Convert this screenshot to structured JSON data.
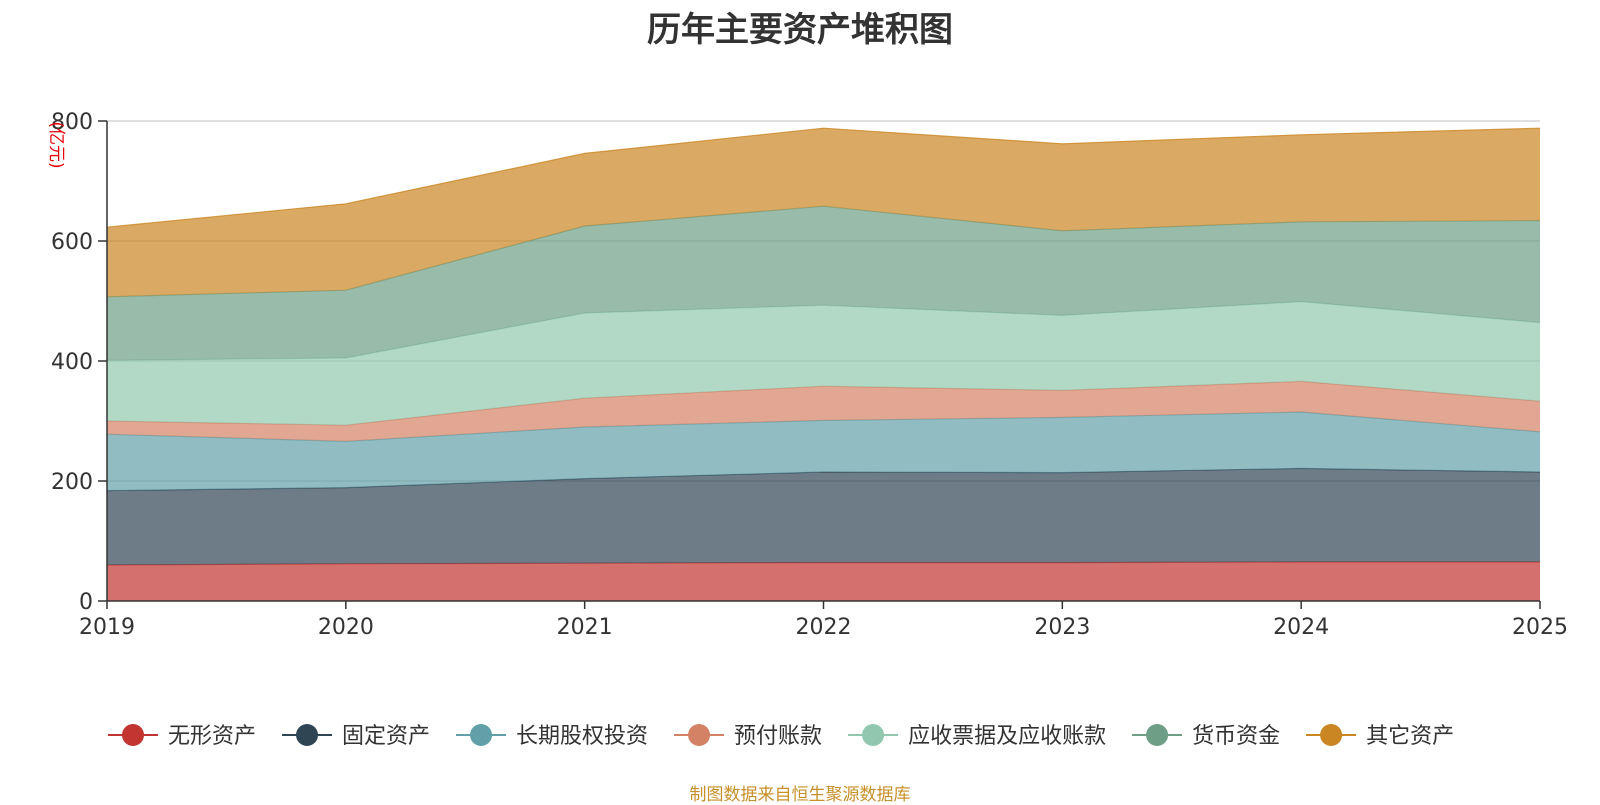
{
  "chart_data": {
    "type": "area",
    "stacked": true,
    "title": "历年主要资产堆积图",
    "unit_label": "(亿元)",
    "x": [
      "2019",
      "2020",
      "2021",
      "2022",
      "2023",
      "2024",
      "2025"
    ],
    "ylim": [
      0,
      800
    ],
    "yticks": [
      "0",
      "200",
      "400",
      "600",
      "800"
    ],
    "grid": true,
    "legend_position": "bottom",
    "series": [
      {
        "name": "无形资产",
        "color": "#c23531",
        "values": [
          60,
          62,
          63,
          64,
          64,
          65,
          65
        ]
      },
      {
        "name": "固定资产",
        "color": "#2f4554",
        "values": [
          124,
          127,
          141,
          151,
          150,
          156,
          150
        ]
      },
      {
        "name": "长期股权投资",
        "color": "#61a0a8",
        "values": [
          94,
          77,
          86,
          86,
          92,
          94,
          67
        ]
      },
      {
        "name": "预付账款",
        "color": "#d48265",
        "values": [
          22,
          27,
          48,
          57,
          45,
          51,
          51
        ]
      },
      {
        "name": "应收票据及应收账款",
        "color": "#91c7ae",
        "values": [
          101,
          112,
          142,
          135,
          125,
          133,
          131
        ]
      },
      {
        "name": "货币资金",
        "color": "#6e9e85",
        "values": [
          106,
          113,
          145,
          165,
          141,
          133,
          170
        ]
      },
      {
        "name": "其它资产",
        "color": "#ca8622",
        "values": [
          116,
          144,
          121,
          130,
          145,
          145,
          154
        ]
      }
    ],
    "source": "制图数据来自恒生聚源数据库"
  }
}
